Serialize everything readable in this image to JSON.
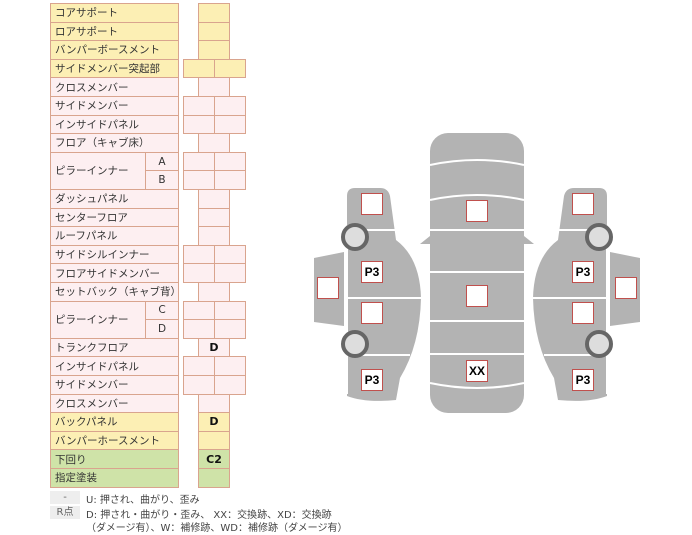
{
  "rows": [
    {
      "label": "コアサポート",
      "color": "y",
      "cells": 1,
      "values": [
        ""
      ]
    },
    {
      "label": "ロアサポート",
      "color": "y",
      "cells": 1,
      "values": [
        ""
      ]
    },
    {
      "label": "バンパーボースメント",
      "color": "y",
      "cells": 1,
      "values": [
        ""
      ]
    },
    {
      "label": "サイドメンバー突起部",
      "color": "y",
      "cells": 2,
      "values": [
        "",
        ""
      ]
    },
    {
      "label": "クロスメンバー",
      "color": "p",
      "cells": 1,
      "values": [
        ""
      ]
    },
    {
      "label": "サイドメンバー",
      "color": "p",
      "cells": 2,
      "values": [
        "",
        ""
      ]
    },
    {
      "label": "インサイドパネル",
      "color": "p",
      "cells": 2,
      "values": [
        "",
        ""
      ]
    },
    {
      "label": "フロア（キャブ床）",
      "color": "p",
      "cells": 1,
      "values": [
        ""
      ]
    },
    {
      "label": "ピラーインナー",
      "color": "p",
      "cells": 2,
      "subs": [
        "A",
        "B"
      ],
      "values": [
        "",
        "",
        "",
        ""
      ]
    },
    {
      "label": "ダッシュパネル",
      "color": "p",
      "cells": 1,
      "values": [
        ""
      ]
    },
    {
      "label": "センターフロア",
      "color": "p",
      "cells": 1,
      "values": [
        ""
      ]
    },
    {
      "label": "ルーフパネル",
      "color": "p",
      "cells": 1,
      "values": [
        ""
      ]
    },
    {
      "label": "サイドシルインナー",
      "color": "p",
      "cells": 2,
      "values": [
        "",
        ""
      ]
    },
    {
      "label": "フロアサイドメンバー",
      "color": "p",
      "cells": 2,
      "values": [
        "",
        ""
      ]
    },
    {
      "label": "セットバック（キャブ背）",
      "color": "p",
      "cells": 1,
      "values": [
        ""
      ]
    },
    {
      "label": "ピラーインナー",
      "color": "p",
      "cells": 2,
      "subs": [
        "C",
        "D"
      ],
      "values": [
        "",
        "",
        "",
        ""
      ]
    },
    {
      "label": "トランクフロア",
      "color": "p",
      "cells": 1,
      "values": [
        "D"
      ]
    },
    {
      "label": "インサイドパネル",
      "color": "p",
      "cells": 2,
      "values": [
        "",
        ""
      ]
    },
    {
      "label": "サイドメンバー",
      "color": "p",
      "cells": 2,
      "values": [
        "",
        ""
      ]
    },
    {
      "label": "クロスメンバー",
      "color": "p",
      "cells": 1,
      "values": [
        ""
      ]
    },
    {
      "label": "バックパネル",
      "color": "y",
      "cells": 1,
      "values": [
        "D"
      ]
    },
    {
      "label": "バンパーホースメント",
      "color": "y",
      "cells": 1,
      "values": [
        ""
      ]
    },
    {
      "label": "下回り",
      "color": "g",
      "cells": 1,
      "values": [
        "C2"
      ]
    },
    {
      "label": "指定塗装",
      "color": "g",
      "cells": 1,
      "values": [
        ""
      ]
    }
  ],
  "diagram": {
    "left": [
      "",
      "P3",
      "",
      "P3",
      ""
    ],
    "center": [
      "",
      "",
      "XX"
    ],
    "right": [
      "",
      "P3",
      "",
      "P3",
      ""
    ]
  },
  "legend": [
    {
      "key": "-",
      "text": "U: 押され、曲がり、歪み"
    },
    {
      "key": "R点",
      "text": "D: 押され・曲がり・歪み、 XX：交換跡、XD：交換跡",
      "text2": "（ダメージ有）、W：補修跡、WD：補修跡（ダメージ有）"
    }
  ],
  "colors": {
    "yellow": "#fcefb4",
    "pink": "#fdeff1",
    "green": "#cfe3a8",
    "border": "#d9a48e",
    "body": "#b3b3b3",
    "mark_border": "#c0504d"
  }
}
